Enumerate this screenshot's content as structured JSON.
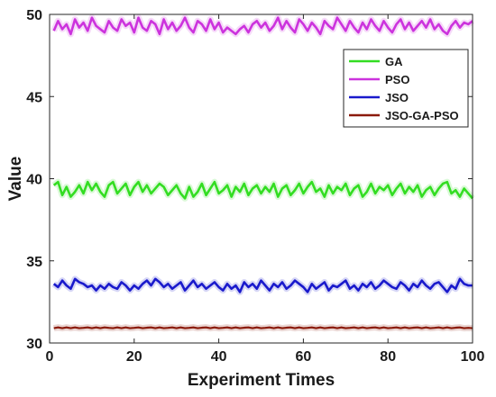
{
  "chart_data": {
    "type": "line",
    "xlabel": "Experiment Times",
    "ylabel": "Value",
    "xlim": [
      0,
      100
    ],
    "ylim": [
      30,
      50
    ],
    "xticks": [
      "0",
      "20",
      "40",
      "60",
      "80",
      "100"
    ],
    "yticks": [
      "30",
      "35",
      "40",
      "45",
      "50"
    ],
    "legend_position": "top-right",
    "grid": false,
    "x": [
      1,
      2,
      3,
      4,
      5,
      6,
      7,
      8,
      9,
      10,
      11,
      12,
      13,
      14,
      15,
      16,
      17,
      18,
      19,
      20,
      21,
      22,
      23,
      24,
      25,
      26,
      27,
      28,
      29,
      30,
      31,
      32,
      33,
      34,
      35,
      36,
      37,
      38,
      39,
      40,
      41,
      42,
      43,
      44,
      45,
      46,
      47,
      48,
      49,
      50,
      51,
      52,
      53,
      54,
      55,
      56,
      57,
      58,
      59,
      60,
      61,
      62,
      63,
      64,
      65,
      66,
      67,
      68,
      69,
      70,
      71,
      72,
      73,
      74,
      75,
      76,
      77,
      78,
      79,
      80,
      81,
      82,
      83,
      84,
      85,
      86,
      87,
      88,
      89,
      90,
      91,
      92,
      93,
      94,
      95,
      96,
      97,
      98,
      99,
      100
    ],
    "series": [
      {
        "name": "GA",
        "color": "#33dd22",
        "values": [
          39.6,
          39.8,
          39.0,
          39.5,
          38.9,
          39.2,
          39.6,
          39.1,
          39.8,
          39.3,
          39.7,
          39.2,
          38.9,
          39.6,
          39.8,
          39.1,
          39.4,
          39.7,
          39.0,
          39.5,
          39.8,
          39.2,
          39.6,
          39.1,
          39.4,
          39.7,
          39.5,
          39.0,
          39.3,
          39.6,
          39.1,
          38.8,
          39.5,
          38.9,
          39.2,
          39.7,
          39.0,
          39.4,
          39.8,
          39.1,
          39.3,
          39.6,
          38.9,
          39.5,
          39.2,
          39.7,
          39.0,
          39.4,
          39.6,
          39.1,
          39.5,
          39.2,
          39.7,
          38.9,
          39.4,
          39.6,
          39.0,
          39.3,
          39.7,
          39.1,
          39.5,
          39.8,
          39.2,
          39.4,
          38.9,
          39.6,
          39.1,
          39.5,
          39.3,
          39.7,
          39.0,
          39.4,
          39.6,
          38.9,
          39.2,
          39.7,
          39.1,
          39.5,
          39.3,
          39.6,
          39.0,
          39.4,
          39.7,
          39.1,
          39.5,
          39.2,
          39.6,
          38.9,
          39.3,
          39.5,
          39.0,
          39.4,
          39.7,
          39.8,
          39.1,
          39.3,
          38.9,
          39.4,
          39.1,
          38.8
        ]
      },
      {
        "name": "PSO",
        "color": "#cc33dd",
        "values": [
          49.0,
          49.6,
          49.1,
          49.4,
          48.8,
          49.7,
          49.2,
          49.5,
          49.0,
          49.8,
          49.3,
          49.1,
          48.9,
          49.6,
          49.2,
          49.0,
          49.7,
          49.3,
          49.5,
          48.9,
          49.8,
          49.2,
          49.0,
          49.6,
          49.4,
          48.8,
          49.7,
          49.1,
          49.5,
          49.0,
          49.3,
          49.8,
          49.2,
          48.9,
          49.6,
          49.4,
          49.0,
          49.7,
          49.1,
          49.5,
          48.9,
          49.2,
          49.0,
          48.8,
          49.1,
          49.3,
          48.9,
          49.4,
          49.6,
          49.2,
          49.5,
          49.0,
          49.3,
          49.8,
          49.1,
          49.6,
          49.2,
          48.9,
          49.7,
          49.4,
          49.0,
          49.5,
          49.2,
          48.8,
          49.6,
          49.3,
          49.1,
          49.8,
          49.4,
          49.0,
          49.6,
          49.2,
          48.9,
          49.5,
          49.1,
          49.7,
          49.3,
          49.0,
          49.6,
          49.2,
          48.9,
          49.4,
          49.7,
          49.1,
          49.5,
          49.0,
          49.3,
          49.6,
          49.2,
          49.7,
          49.1,
          49.4,
          49.0,
          48.8,
          49.3,
          49.6,
          49.2,
          49.5,
          49.4,
          49.6
        ]
      },
      {
        "name": "JSO",
        "color": "#1a1acc",
        "values": [
          33.6,
          33.4,
          33.8,
          33.5,
          33.3,
          33.9,
          33.7,
          33.6,
          33.4,
          33.5,
          33.2,
          33.5,
          33.3,
          33.6,
          33.4,
          33.3,
          33.7,
          33.5,
          33.2,
          33.5,
          33.3,
          33.6,
          33.8,
          33.5,
          33.9,
          33.7,
          33.4,
          33.6,
          33.3,
          33.5,
          33.7,
          33.2,
          33.5,
          33.8,
          33.4,
          33.6,
          33.3,
          33.5,
          33.7,
          33.4,
          33.2,
          33.6,
          33.3,
          33.5,
          33.1,
          33.7,
          33.4,
          33.6,
          33.3,
          33.8,
          33.5,
          33.2,
          33.6,
          33.4,
          33.7,
          33.3,
          33.5,
          33.8,
          33.6,
          33.4,
          33.1,
          33.6,
          33.3,
          33.5,
          33.7,
          33.2,
          33.5,
          33.4,
          33.6,
          33.8,
          33.3,
          33.5,
          33.2,
          33.6,
          33.4,
          33.7,
          33.3,
          33.5,
          33.8,
          33.6,
          33.4,
          33.3,
          33.7,
          33.5,
          33.2,
          33.6,
          33.4,
          33.8,
          33.5,
          33.3,
          33.6,
          33.7,
          33.4,
          33.1,
          33.5,
          33.3,
          33.9,
          33.6,
          33.5,
          33.5
        ]
      },
      {
        "name": "JSO-GA-PSO",
        "color": "#8b1a0a",
        "values": [
          30.9,
          30.95,
          30.9,
          30.95,
          30.9,
          30.95,
          30.9,
          30.92,
          30.95,
          30.9,
          30.95,
          30.9,
          30.95,
          30.92,
          30.9,
          30.95,
          30.9,
          30.95,
          30.9,
          30.92,
          30.95,
          30.9,
          30.93,
          30.95,
          30.9,
          30.95,
          30.9,
          30.92,
          30.95,
          30.9,
          30.95,
          30.9,
          30.92,
          30.95,
          30.9,
          30.93,
          30.95,
          30.9,
          30.95,
          30.9,
          30.92,
          30.95,
          30.9,
          30.95,
          30.9,
          30.93,
          30.95,
          30.9,
          30.95,
          30.9,
          30.92,
          30.95,
          30.9,
          30.95,
          30.9,
          30.93,
          30.95,
          30.9,
          30.95,
          30.9,
          30.92,
          30.95,
          30.9,
          30.95,
          30.9,
          30.93,
          30.95,
          30.9,
          30.95,
          30.9,
          30.92,
          30.95,
          30.9,
          30.95,
          30.9,
          30.93,
          30.95,
          30.9,
          30.95,
          30.9,
          30.92,
          30.95,
          30.9,
          30.95,
          30.9,
          30.93,
          30.95,
          30.9,
          30.95,
          30.9,
          30.92,
          30.95,
          30.9,
          30.95,
          30.9,
          30.93,
          30.95,
          30.9,
          30.92,
          30.9
        ]
      }
    ]
  }
}
